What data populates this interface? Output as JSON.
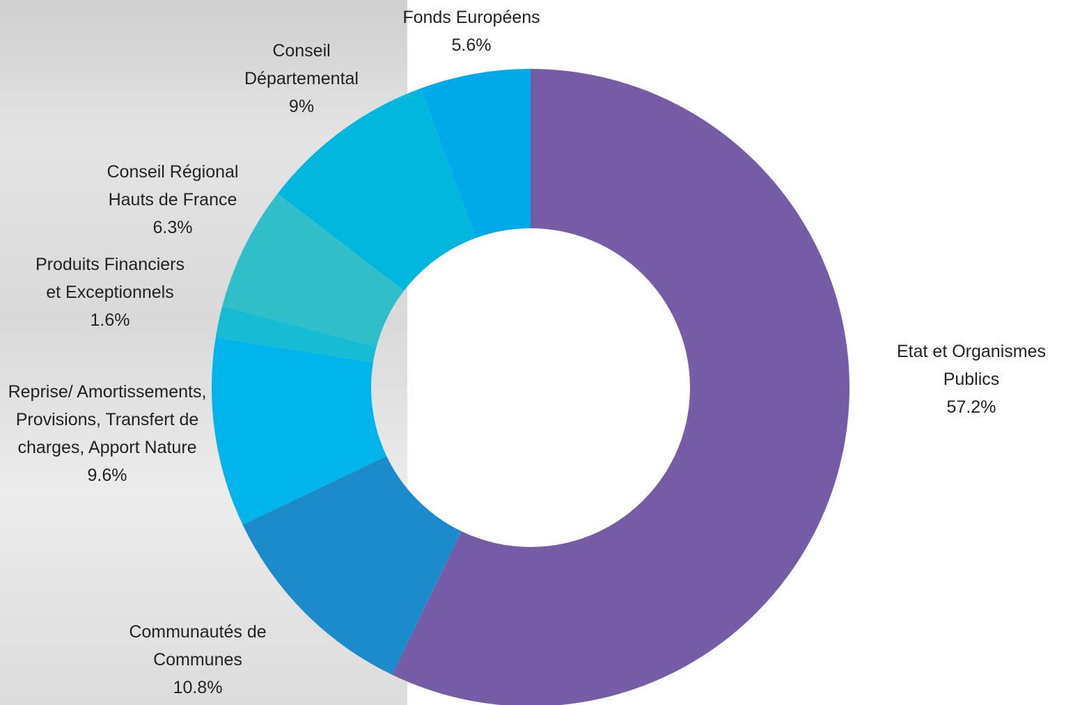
{
  "chart_data": {
    "type": "donut",
    "categories": [
      "Etat et Organismes Publics",
      "Communautés de Communes",
      "Reprise/ Amortissements, Provisions, Transfert de charges, Apport Nature",
      "Produits Financiers et Exceptionnels",
      "Conseil Régional Hauts de France",
      "Conseil Départemental",
      "Fonds Européens"
    ],
    "values": [
      57.2,
      10.8,
      9.6,
      1.6,
      6.3,
      9,
      5.6
    ],
    "value_labels": [
      "57.2%",
      "10.8%",
      "9.6%",
      "1.6%",
      "6.3%",
      "9%",
      "5.6%"
    ],
    "colors": [
      "#765ca6",
      "#1c8bcc",
      "#00b5ec",
      "#17bcd4",
      "#30bfc9",
      "#02b7dd",
      "#00a9e8"
    ]
  }
}
